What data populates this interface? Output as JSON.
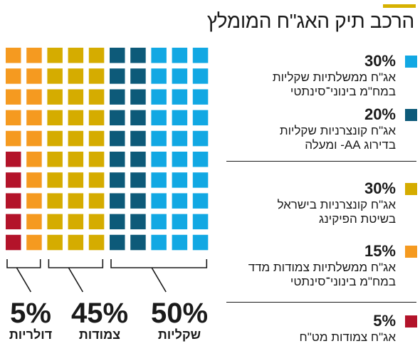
{
  "title": "הרכב תיק האג\"ח המומלץ",
  "colors": {
    "accent": "#d6b100",
    "text": "#1a1a1a"
  },
  "chart_data": {
    "type": "waffle",
    "grid": {
      "rows": 10,
      "cols": 10
    },
    "segments": [
      {
        "name": "אג\"ח ממשלתיות שקליות במח\"מ בינוני־סינתטי",
        "line1": "אג\"ח ממשלתיות שקליות",
        "line2": "במח\"מ בינוני־סינתטי",
        "value": 30,
        "label": "30%",
        "color": "#12a8e3"
      },
      {
        "name": "אג\"ח קונצרניות שקליות בדירוג AA- ומעלה",
        "line1": "אג\"ח קונצרניות שקליות",
        "line2": "בדירוג ‎-AA‎ ומעלה",
        "value": 20,
        "label": "20%",
        "color": "#0d5a79"
      },
      {
        "name": "אג\"ח קונצרניות בישראל בשיטת הפיקינג",
        "line1": "אג\"ח קונצרניות בישראל",
        "line2": "בשיטת הפיקינג",
        "value": 30,
        "label": "30%",
        "color": "#d5ac00"
      },
      {
        "name": "אג\"ח ממשלתיות צמודות מדד במח\"מ בינוני־סינתטי",
        "line1": "אג\"ח ממשלתיות צמודות מדד",
        "line2": "במח\"מ בינוני־סינתטי",
        "value": 15,
        "label": "15%",
        "color": "#f59a20"
      },
      {
        "name": "אג\"ח צמודות מט\"ח",
        "line1": "אג\"ח צמודות מט\"ח",
        "line2": "",
        "value": 5,
        "label": "5%",
        "color": "#b3132a"
      }
    ],
    "groups": [
      {
        "name": "שקליות",
        "value": 50,
        "label": "50%",
        "columns": [
          5,
          9
        ]
      },
      {
        "name": "צמודות",
        "value": 45,
        "label": "45%",
        "columns": [
          2,
          4
        ]
      },
      {
        "name": "דולריות",
        "value": 5,
        "label": "5%",
        "columns": [
          0,
          1
        ]
      }
    ]
  }
}
